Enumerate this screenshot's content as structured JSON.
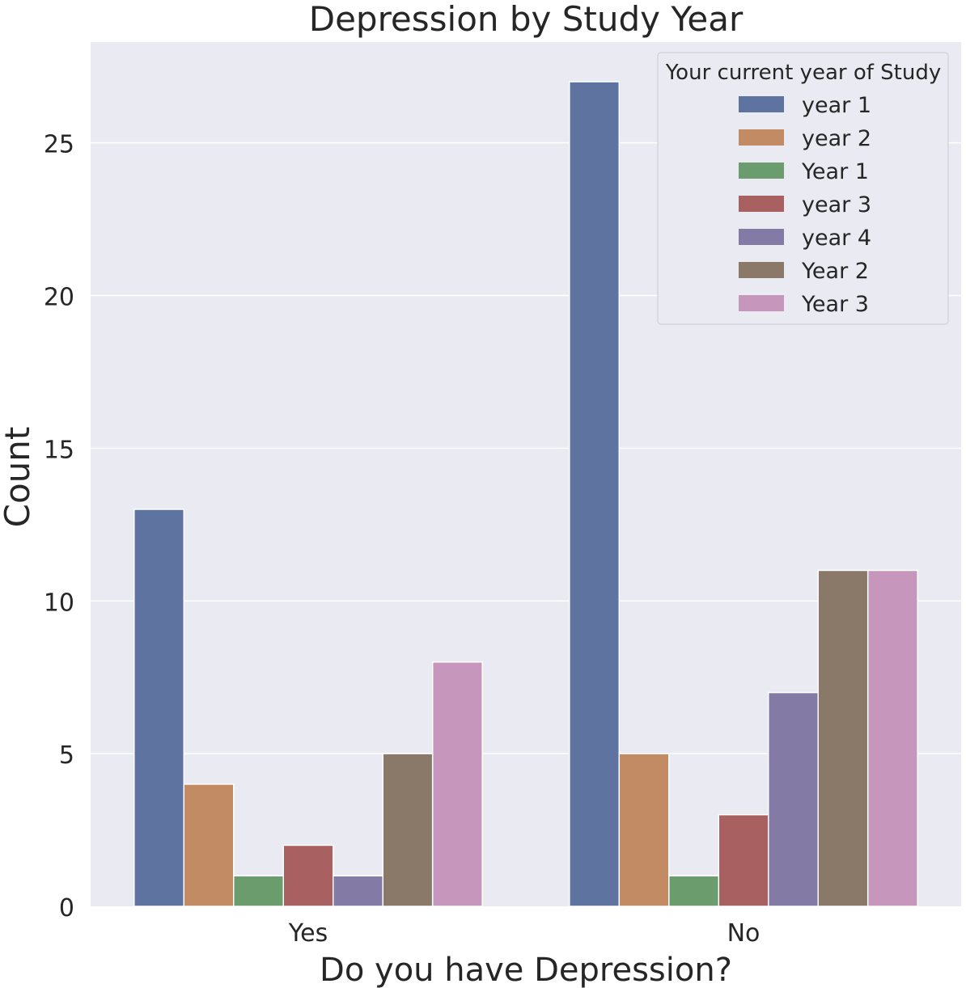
{
  "chart_data": {
    "type": "bar",
    "title": "Depression by Study Year",
    "xlabel": "Do you have Depression?",
    "ylabel": "Count",
    "categories": [
      "Yes",
      "No"
    ],
    "ylim": [
      0,
      28.3
    ],
    "yticks": [
      "0",
      "5",
      "10",
      "15",
      "20",
      "25"
    ],
    "grid": true,
    "legend": {
      "title": "Your current year of Study",
      "placement": "top-right"
    },
    "series": [
      {
        "name": "year 1",
        "values": [
          13,
          27
        ],
        "color": "#5f73a1"
      },
      {
        "name": "year 2",
        "values": [
          4,
          5
        ],
        "color": "#c38b63"
      },
      {
        "name": "Year 1",
        "values": [
          1,
          1
        ],
        "color": "#6a9c6d"
      },
      {
        "name": "year 3",
        "values": [
          2,
          3
        ],
        "color": "#a96060"
      },
      {
        "name": "year 4",
        "values": [
          1,
          7
        ],
        "color": "#847aa6"
      },
      {
        "name": "Year 2",
        "values": [
          5,
          11
        ],
        "color": "#8a7968"
      },
      {
        "name": "Year 3",
        "values": [
          8,
          11
        ],
        "color": "#c796bd"
      }
    ]
  },
  "colors": {
    "plot_background": "#eaeaf2",
    "grid": "#ffffff",
    "text": "#262626"
  }
}
